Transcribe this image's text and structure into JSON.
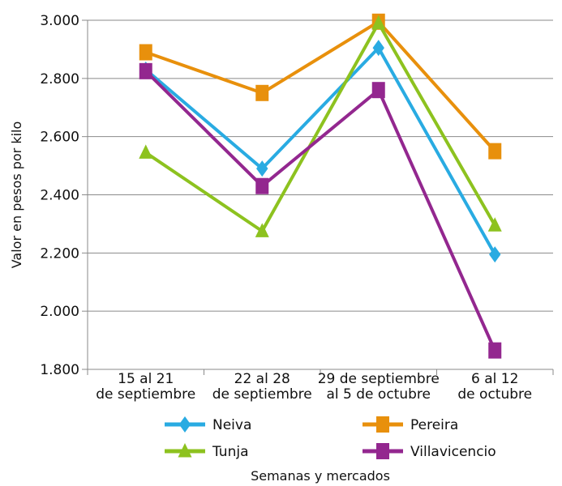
{
  "chart_data": {
    "type": "line",
    "title": "",
    "xlabel": "Semanas y mercados",
    "ylabel": "Valor en pesos por kilo",
    "ylim": [
      1800,
      3000
    ],
    "yticks": [
      1800,
      2000,
      2200,
      2400,
      2600,
      2800,
      3000
    ],
    "ytick_labels": [
      "1.800",
      "2.000",
      "2.200",
      "2.400",
      "2.600",
      "2.800",
      "3.000"
    ],
    "grid": true,
    "legend_position": "bottom",
    "categories": [
      [
        "15 al 21",
        "de septiembre"
      ],
      [
        "22 al 28",
        "de septiembre"
      ],
      [
        "29 de septiembre",
        "al 5 de octubre"
      ],
      [
        "6 al 12",
        "de octubre"
      ]
    ],
    "series": [
      {
        "name": "Neiva",
        "color": "#29abe2",
        "marker": "diamond",
        "values": [
          2830,
          2490,
          2905,
          2195
        ]
      },
      {
        "name": "Pereira",
        "color": "#e8900c",
        "marker": "square",
        "values": [
          2890,
          2750,
          2995,
          2550
        ]
      },
      {
        "name": "Tunja",
        "color": "#8dc21f",
        "marker": "triangle",
        "values": [
          2545,
          2275,
          2990,
          2295
        ]
      },
      {
        "name": "Villavicencio",
        "color": "#93278f",
        "marker": "square",
        "values": [
          2825,
          2430,
          2760,
          1865
        ]
      }
    ]
  }
}
